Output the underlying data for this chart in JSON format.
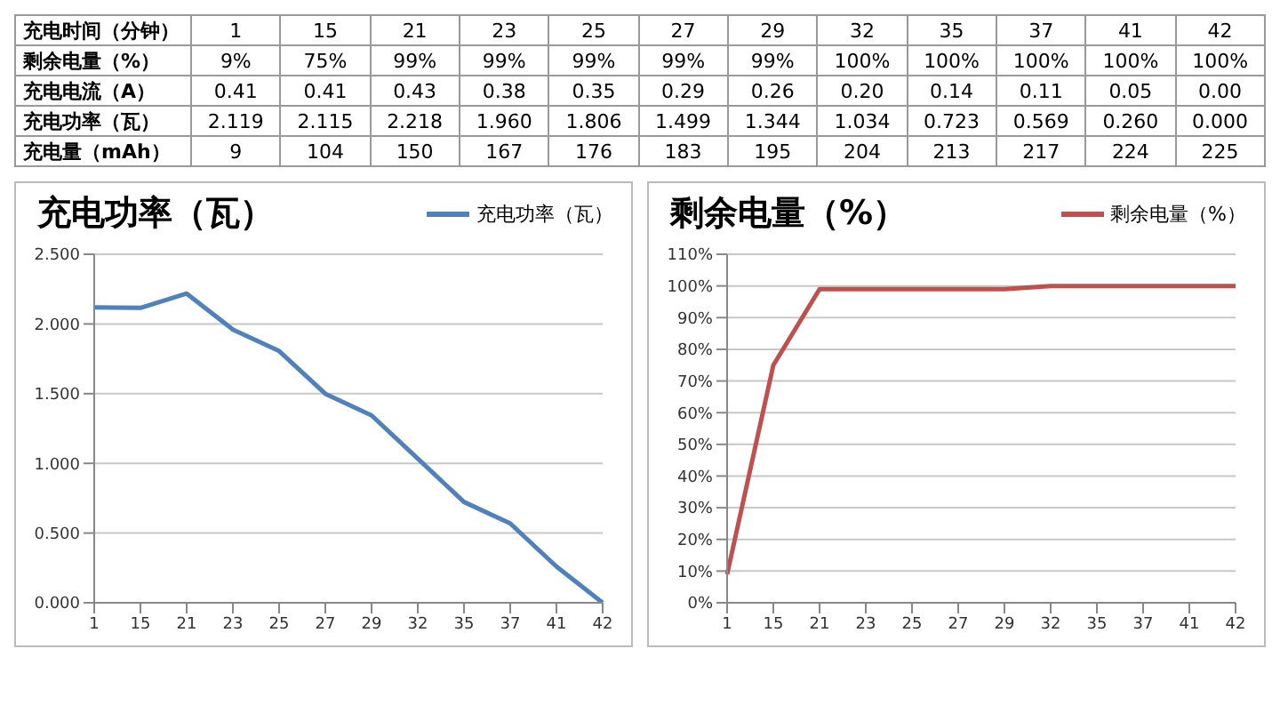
{
  "chart_data": [
    {
      "type": "other",
      "annotations": [
        "充电时间（分钟）",
        "1",
        "15",
        "21",
        "23",
        "25",
        "27",
        "29",
        "32",
        "35",
        "37",
        "41",
        "42",
        "剩余电量（%）",
        "9%",
        "75%",
        "99%",
        "99%",
        "99%",
        "99%",
        "99%",
        "100%",
        "100%",
        "100%",
        "100%",
        "100%",
        "充电电流（A）",
        "0.41",
        "0.41",
        "0.43",
        "0.38",
        "0.35",
        "0.29",
        "0.26",
        "0.20",
        "0.14",
        "0.11",
        "0.05",
        "0.00",
        "充电功率（瓦）",
        "2.119",
        "2.115",
        "2.218",
        "1.960",
        "1.806",
        "1.499",
        "1.344",
        "1.034",
        "0.723",
        "0.569",
        "0.260",
        "0.000",
        "充电量（mAh）",
        "9",
        "104",
        "150",
        "167",
        "176",
        "183",
        "195",
        "204",
        "213",
        "217",
        "224",
        "225"
      ]
    },
    {
      "type": "line",
      "title": "充电功率（瓦）",
      "categories": [
        "1",
        "15",
        "21",
        "23",
        "25",
        "27",
        "29",
        "32",
        "35",
        "37",
        "41",
        "42"
      ],
      "series": [
        {
          "name": "充电功率（瓦）",
          "color": "#4f81bd",
          "values": [
            2.119,
            2.115,
            2.218,
            1.96,
            1.806,
            1.499,
            1.344,
            1.034,
            0.723,
            0.569,
            0.26,
            0.0
          ]
        }
      ],
      "ylim": [
        0,
        2.5
      ],
      "yticks": [
        {
          "value": 0,
          "label": "0.000"
        },
        {
          "value": 0.5,
          "label": "0.500"
        },
        {
          "value": 1,
          "label": "1.000"
        },
        {
          "value": 1.5,
          "label": "1.500"
        },
        {
          "value": 2,
          "label": "2.000"
        },
        {
          "value": 2.5,
          "label": "2.500"
        }
      ],
      "grid": "y",
      "legend": "top right",
      "marker": "none"
    },
    {
      "type": "line",
      "title": "剩余电量（%）",
      "categories": [
        "1",
        "15",
        "21",
        "23",
        "25",
        "27",
        "29",
        "32",
        "35",
        "37",
        "41",
        "42"
      ],
      "series": [
        {
          "name": "剩余电量（%）",
          "color": "#c0504d",
          "values": [
            9,
            75,
            99,
            99,
            99,
            99,
            99,
            100,
            100,
            100,
            100,
            100
          ]
        }
      ],
      "ylim": [
        0,
        110
      ],
      "yticks": [
        {
          "value": 0,
          "label": "0%"
        },
        {
          "value": 10,
          "label": "10%"
        },
        {
          "value": 20,
          "label": "20%"
        },
        {
          "value": 30,
          "label": "30%"
        },
        {
          "value": 40,
          "label": "40%"
        },
        {
          "value": 50,
          "label": "50%"
        },
        {
          "value": 60,
          "label": "60%"
        },
        {
          "value": 70,
          "label": "70%"
        },
        {
          "value": 80,
          "label": "80%"
        },
        {
          "value": 90,
          "label": "90%"
        },
        {
          "value": 100,
          "label": "100%"
        },
        {
          "value": 110,
          "label": "110%"
        }
      ],
      "grid": "y",
      "legend": "top right",
      "marker": "none"
    }
  ]
}
